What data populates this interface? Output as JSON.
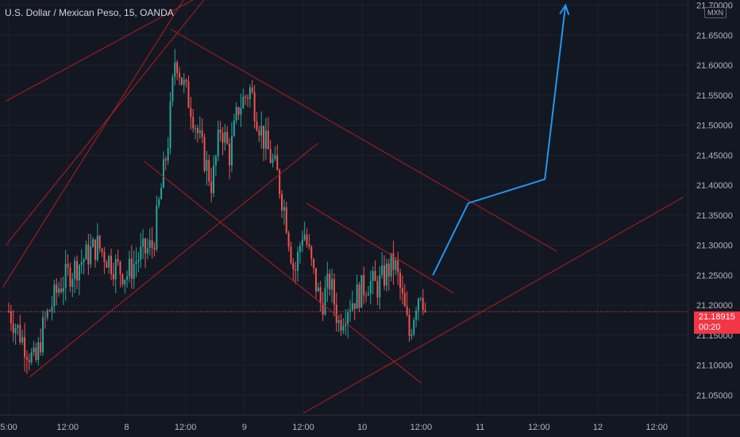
{
  "header": {
    "title": "U.S. Dollar / Mexican Peso, 15, OANDA",
    "currency": "MXN"
  },
  "price_badge": {
    "price": "21.18915",
    "countdown": "00:20"
  },
  "colors": {
    "background": "#131722",
    "up": "#26a69a",
    "down": "#ef5350",
    "trendline": "#b71c1c",
    "projection": "#2196f3",
    "axis_text": "#b2b5be",
    "badge": "#f23645"
  },
  "chart_data": {
    "type": "candlestick",
    "symbol": "USDMXN",
    "interval": "15",
    "source": "OANDA",
    "ylim": [
      21.02,
      21.71
    ],
    "y_ticks": [
      "21.05000",
      "21.10000",
      "21.15000",
      "21.20000",
      "21.25000",
      "21.30000",
      "21.35000",
      "21.40000",
      "21.45000",
      "21.50000",
      "21.55000",
      "21.60000",
      "21.65000",
      "21.70000"
    ],
    "x_ticks": [
      {
        "label": "5:00",
        "t": 0.0
      },
      {
        "label": "12:00",
        "t": 1.0
      },
      {
        "label": "8",
        "t": 2.0
      },
      {
        "label": "12:00",
        "t": 3.0
      },
      {
        "label": "9",
        "t": 4.0
      },
      {
        "label": "12:00",
        "t": 5.0
      },
      {
        "label": "10",
        "t": 6.0
      },
      {
        "label": "12:00",
        "t": 7.0
      },
      {
        "label": "11",
        "t": 8.0
      },
      {
        "label": "12:00",
        "t": 9.0
      },
      {
        "label": "12",
        "t": 10.0
      },
      {
        "label": "12:00",
        "t": 11.0
      }
    ],
    "last_price": 21.18915,
    "close_path": [
      [
        0.0,
        21.19
      ],
      [
        0.2,
        21.15
      ],
      [
        0.45,
        21.1
      ],
      [
        0.6,
        21.17
      ],
      [
        0.85,
        21.23
      ],
      [
        1.0,
        21.25
      ],
      [
        1.2,
        21.27
      ],
      [
        1.5,
        21.3
      ],
      [
        1.75,
        21.27
      ],
      [
        2.0,
        21.25
      ],
      [
        2.2,
        21.28
      ],
      [
        2.45,
        21.3
      ],
      [
        2.7,
        21.47
      ],
      [
        2.83,
        21.62
      ],
      [
        2.95,
        21.57
      ],
      [
        3.1,
        21.53
      ],
      [
        3.25,
        21.47
      ],
      [
        3.45,
        21.4
      ],
      [
        3.6,
        21.5
      ],
      [
        3.75,
        21.45
      ],
      [
        3.9,
        21.53
      ],
      [
        4.1,
        21.56
      ],
      [
        4.2,
        21.52
      ],
      [
        4.35,
        21.47
      ],
      [
        4.55,
        21.42
      ],
      [
        4.7,
        21.35
      ],
      [
        4.85,
        21.25
      ],
      [
        5.0,
        21.33
      ],
      [
        5.15,
        21.26
      ],
      [
        5.3,
        21.2
      ],
      [
        5.45,
        21.24
      ],
      [
        5.6,
        21.17
      ],
      [
        5.75,
        21.2
      ],
      [
        5.95,
        21.22
      ],
      [
        6.1,
        21.24
      ],
      [
        6.25,
        21.23
      ],
      [
        6.45,
        21.26
      ],
      [
        6.55,
        21.27
      ],
      [
        6.7,
        21.2
      ],
      [
        6.8,
        21.15
      ],
      [
        6.92,
        21.21
      ],
      [
        7.0,
        21.23
      ],
      [
        7.07,
        21.19
      ]
    ],
    "trendlines": [
      {
        "points": [
          [
            -0.05,
            21.54
          ],
          [
            3.9,
            21.75
          ]
        ]
      },
      {
        "points": [
          [
            -0.05,
            21.3
          ],
          [
            3.9,
            21.78
          ]
        ]
      },
      {
        "points": [
          [
            -0.1,
            21.23
          ],
          [
            3.1,
            21.73
          ]
        ]
      },
      {
        "points": [
          [
            2.75,
            21.66
          ],
          [
            9.3,
            21.29
          ]
        ]
      },
      {
        "points": [
          [
            0.35,
            21.08
          ],
          [
            5.25,
            21.47
          ]
        ]
      },
      {
        "points": [
          [
            2.3,
            21.44
          ],
          [
            7.0,
            21.07
          ]
        ]
      },
      {
        "points": [
          [
            5.05,
            21.37
          ],
          [
            7.55,
            21.22
          ]
        ]
      },
      {
        "points": [
          [
            5.0,
            21.02
          ],
          [
            11.45,
            21.38
          ]
        ]
      }
    ],
    "projection": {
      "points": [
        [
          7.2,
          21.25
        ],
        [
          7.8,
          21.37
        ],
        [
          9.1,
          21.41
        ],
        [
          9.45,
          21.7
        ]
      ]
    },
    "price_line": 21.18915
  }
}
